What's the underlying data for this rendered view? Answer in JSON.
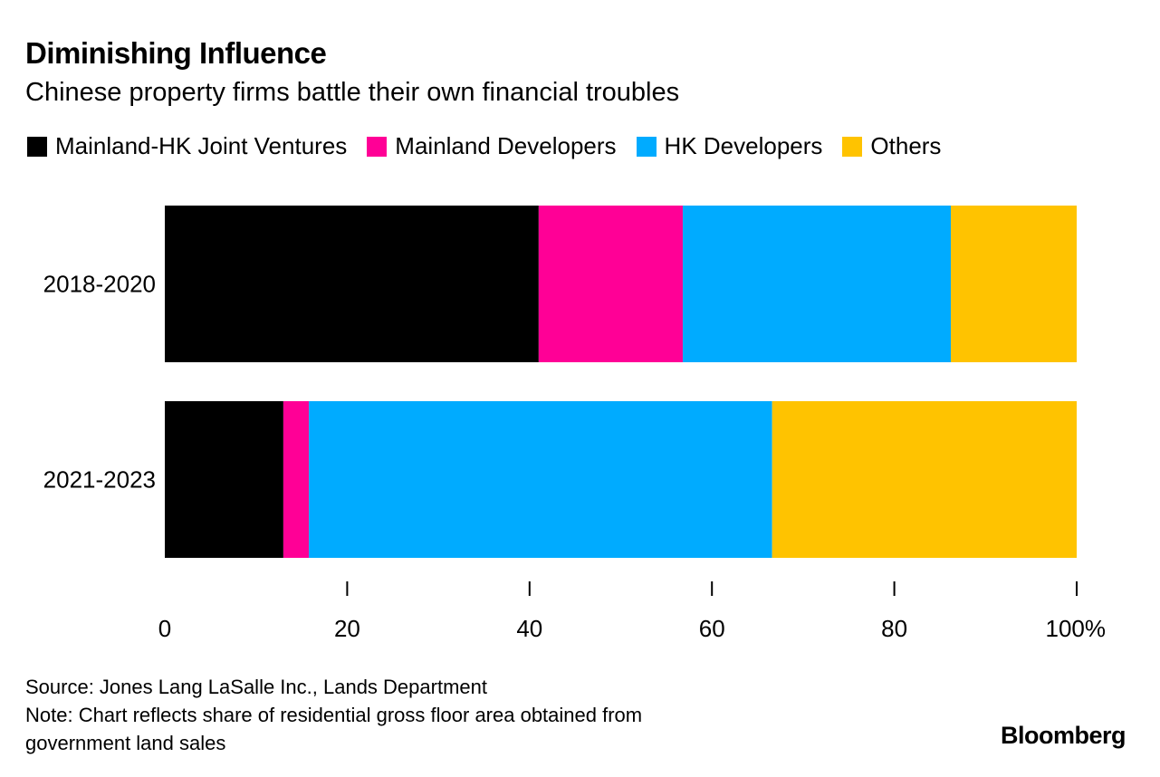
{
  "colors": {
    "background": "#ffffff",
    "text": "#000000",
    "series": [
      "#000000",
      "#ff0096",
      "#00abff",
      "#ffc300"
    ]
  },
  "chart_data": {
    "type": "bar",
    "orientation": "horizontal",
    "stacked": true,
    "title": "Diminishing Influence",
    "subtitle": "Chinese property firms battle their own financial troubles",
    "categories": [
      "2018-2020",
      "2021-2023"
    ],
    "series": [
      {
        "name": "Mainland-HK Joint Ventures",
        "values": [
          41,
          13
        ]
      },
      {
        "name": "Mainland Developers",
        "values": [
          15.8,
          2.8
        ]
      },
      {
        "name": "HK Developers",
        "values": [
          29.4,
          50.8
        ]
      },
      {
        "name": "Others",
        "values": [
          13.8,
          33.4
        ]
      }
    ],
    "xlim": [
      0,
      100
    ],
    "xticks": [
      "0",
      "20",
      "40",
      "60",
      "80",
      "100%"
    ],
    "xlabel": "",
    "ylabel": "",
    "legend_position": "top",
    "grid": false
  },
  "footer": {
    "source": "Source: Jones Lang LaSalle Inc., Lands Department",
    "note_line1": "Note: Chart reflects share of residential gross floor area obtained from",
    "note_line2": "government land sales"
  },
  "brand": "Bloomberg"
}
